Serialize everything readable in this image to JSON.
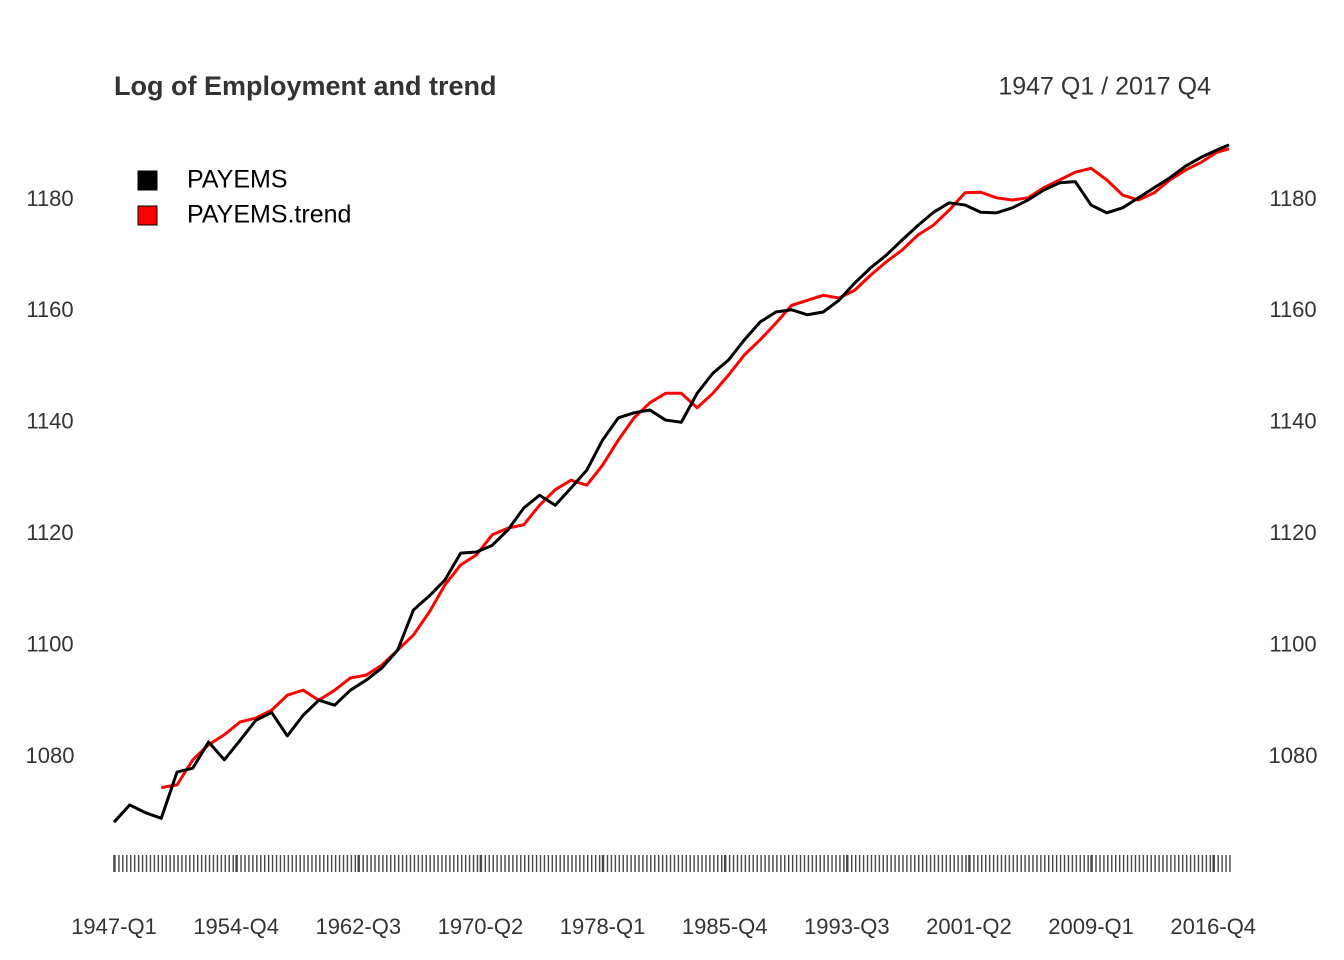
{
  "chart_data": {
    "type": "line",
    "title": "Log of Employment and trend",
    "subtitle": "1947 Q1 / 2017 Q4",
    "x": [
      1947,
      1948,
      1949,
      1950,
      1951,
      1952,
      1953,
      1954,
      1955,
      1956,
      1957,
      1958,
      1959,
      1960,
      1961,
      1962,
      1963,
      1964,
      1965,
      1966,
      1967,
      1968,
      1969,
      1970,
      1971,
      1972,
      1973,
      1974,
      1975,
      1976,
      1977,
      1978,
      1979,
      1980,
      1981,
      1982,
      1983,
      1984,
      1985,
      1986,
      1987,
      1988,
      1989,
      1990,
      1991,
      1992,
      1993,
      1994,
      1995,
      1996,
      1997,
      1998,
      1999,
      2000,
      2001,
      2002,
      2003,
      2004,
      2005,
      2006,
      2007,
      2008,
      2009,
      2010,
      2011,
      2012,
      2013,
      2014,
      2015,
      2016,
      2017,
      2017.75
    ],
    "series": [
      {
        "name": "PAYEMS",
        "color": "#000000",
        "values": [
          1068.3,
          1071.4,
          1070,
          1069,
          1077.3,
          1078,
          1082.7,
          1079.5,
          1083,
          1086.6,
          1088,
          1083.8,
          1087.5,
          1090.2,
          1089.3,
          1092,
          1093.8,
          1096,
          1099.2,
          1106.4,
          1108.9,
          1111.8,
          1116.6,
          1116.8,
          1118,
          1120.8,
          1124.7,
          1127,
          1125.2,
          1128.3,
          1131.5,
          1136.9,
          1140.9,
          1141.8,
          1142.3,
          1140.5,
          1140.1,
          1145.3,
          1148.9,
          1151.3,
          1154.9,
          1158.1,
          1159.9,
          1160.3,
          1159.4,
          1159.9,
          1162,
          1165.1,
          1167.8,
          1170.1,
          1172.8,
          1175.4,
          1177.8,
          1179.5,
          1179.1,
          1177.8,
          1177.7,
          1178.6,
          1180,
          1181.8,
          1183.1,
          1183.3,
          1179.1,
          1177.7,
          1178.6,
          1180.4,
          1182.2,
          1184,
          1186.1,
          1187.7,
          1189,
          1189.9
        ]
      },
      {
        "name": "PAYEMS.trend",
        "color": "#ff0000",
        "values": [
          null,
          null,
          null,
          1074.5,
          1075,
          1079.5,
          1082.2,
          1084,
          1086.3,
          1087,
          1088.4,
          1091.1,
          1092,
          1090.2,
          1092,
          1094.2,
          1094.7,
          1096.5,
          1099.2,
          1101.9,
          1106,
          1110.9,
          1114.5,
          1116.3,
          1119.9,
          1121.1,
          1121.7,
          1125.2,
          1128,
          1129.7,
          1128.8,
          1132.4,
          1136.9,
          1140.9,
          1143.6,
          1145.3,
          1145.3,
          1142.7,
          1145.3,
          1148.6,
          1152.2,
          1154.9,
          1157.9,
          1161.1,
          1162,
          1162.9,
          1162.4,
          1163.8,
          1166.5,
          1168.9,
          1171,
          1173.7,
          1175.5,
          1178.2,
          1181.3,
          1181.4,
          1180.4,
          1180,
          1180.4,
          1182.2,
          1183.6,
          1185,
          1185.7,
          1183.6,
          1180.9,
          1180,
          1181.3,
          1183.6,
          1185.4,
          1186.8,
          1188.6,
          1189.2
        ]
      }
    ],
    "xlim": [
      1947,
      2017.75
    ],
    "xticks": [
      {
        "value": 1947,
        "label": "1947-Q1"
      },
      {
        "value": 1954.75,
        "label": "1954-Q4"
      },
      {
        "value": 1962.5,
        "label": "1962-Q3"
      },
      {
        "value": 1970.25,
        "label": "1970-Q2"
      },
      {
        "value": 1978,
        "label": "1978-Q1"
      },
      {
        "value": 1985.75,
        "label": "1985-Q4"
      },
      {
        "value": 1993.5,
        "label": "1993-Q3"
      },
      {
        "value": 2001.25,
        "label": "2001-Q2"
      },
      {
        "value": 2009,
        "label": "2009-Q1"
      },
      {
        "value": 2016.75,
        "label": "2016-Q4"
      }
    ],
    "ylim": [
      1066,
      1192
    ],
    "yticks": [
      1080,
      1100,
      1120,
      1140,
      1160,
      1180
    ],
    "legend": "top-left",
    "grid": false
  }
}
